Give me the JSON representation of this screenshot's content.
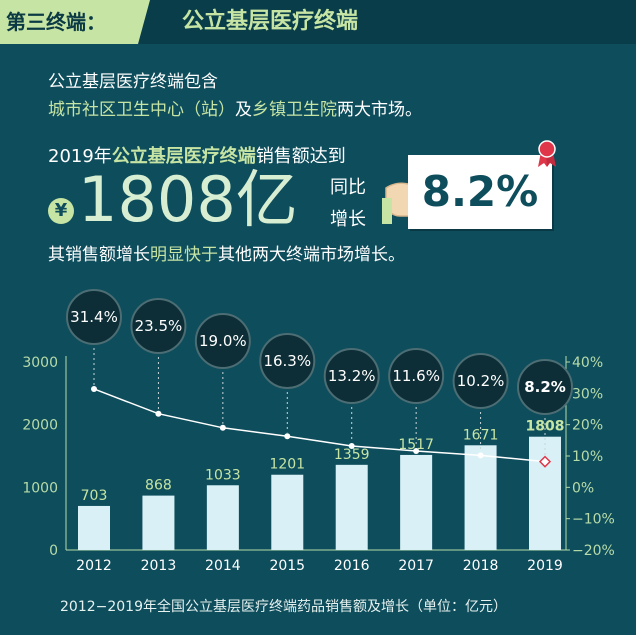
{
  "header": {
    "tag": "第三终端：",
    "title": "公立基层医疗终端"
  },
  "intro": {
    "line1": "公立基层医疗终端包含",
    "highlight1": "城市社区卫生中心（站）",
    "connector": "及",
    "highlight2": "乡镇卫生院",
    "suffix": "两大市场。"
  },
  "sales": {
    "prefix": "2019年",
    "highlight": "公立基层医疗终端",
    "suffix": "销售额达到",
    "currency": "¥",
    "amount": "1808亿",
    "growth_label_1": "同比",
    "growth_label_2": "增长",
    "growth_value": "8.2%"
  },
  "comparison": {
    "prefix": "其销售额增长",
    "highlight": "明显快于",
    "suffix": "其他两大终端市场增长。"
  },
  "colors": {
    "background": "#0e4d5c",
    "accent": "#c6e4a3",
    "bar": "#d9f1f6",
    "line": "#ffffff",
    "highlight_marker": "#e0364a"
  },
  "chart_data": {
    "type": "bar",
    "categories": [
      "2012",
      "2013",
      "2014",
      "2015",
      "2016",
      "2017",
      "2018",
      "2019"
    ],
    "series": [
      {
        "values": [
          703,
          868,
          1033,
          1201,
          1359,
          1517,
          1671,
          1808
        ]
      },
      {
        "type": "line",
        "values": [
          31.4,
          23.5,
          19.0,
          16.3,
          13.2,
          11.6,
          10.2,
          8.2
        ]
      }
    ],
    "value_labels": [
      "703",
      "868",
      "1033",
      "1201",
      "1359",
      "1517",
      "1671",
      "1808"
    ],
    "growth_labels": [
      "31.4%",
      "23.5%",
      "19.0%",
      "16.3%",
      "13.2%",
      "11.6%",
      "10.2%",
      "8.2%"
    ],
    "ylim": [
      0,
      3000
    ],
    "y_ticks": [
      "0",
      "1000",
      "2000",
      "3000"
    ],
    "y2lim": [
      -20,
      40
    ],
    "y2_ticks": [
      "−20%",
      "−10%",
      "0%",
      "10%",
      "20%",
      "30%",
      "40%"
    ],
    "grid": false,
    "title": "2012−2019年全国公立基层医疗终端药品销售额及增长（单位：亿元）"
  }
}
